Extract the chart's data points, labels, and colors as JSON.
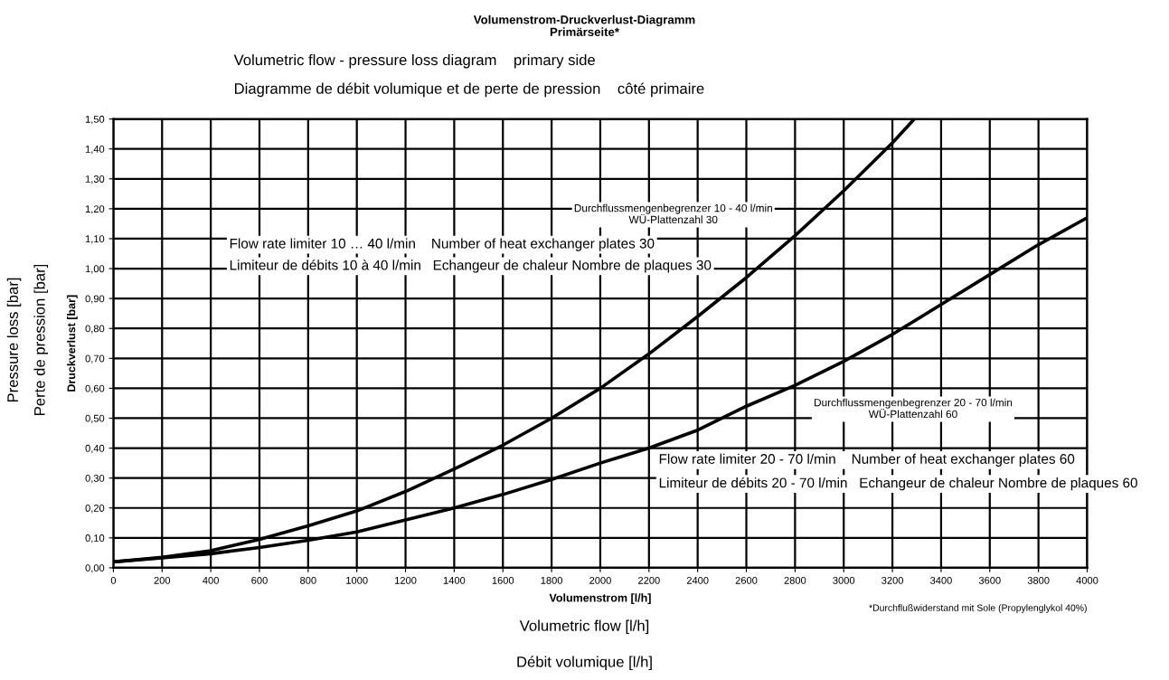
{
  "chart_data": {
    "type": "line",
    "title": "Volumenstrom-Druckverlust-Diagramm",
    "subtitle": "Primärseite*",
    "xlabel": "Volumenstrom [l/h]",
    "ylabel": "Druckverlust [bar]",
    "xlim": [
      0,
      4000
    ],
    "xticks": [
      0,
      200,
      400,
      600,
      800,
      1000,
      1200,
      1400,
      1600,
      1800,
      2000,
      2200,
      2400,
      2600,
      2800,
      3000,
      3200,
      3400,
      3600,
      3800,
      4000
    ],
    "ylim": [
      0,
      1.5
    ],
    "yticks": [
      {
        "value": 0,
        "label": "0,00"
      },
      {
        "value": 0.1,
        "label": "0,10"
      },
      {
        "value": 0.2,
        "label": "0,20"
      },
      {
        "value": 0.3,
        "label": "0,30"
      },
      {
        "value": 0.4,
        "label": "0,40"
      },
      {
        "value": 0.5,
        "label": "0,50"
      },
      {
        "value": 0.6,
        "label": "0,60"
      },
      {
        "value": 0.7,
        "label": "0,70"
      },
      {
        "value": 0.8,
        "label": "0,80"
      },
      {
        "value": 0.9,
        "label": "0,90"
      },
      {
        "value": 1.0,
        "label": "1,00"
      },
      {
        "value": 1.1,
        "label": "1,10"
      },
      {
        "value": 1.2,
        "label": "1,20"
      },
      {
        "value": 1.3,
        "label": "1,30"
      },
      {
        "value": 1.4,
        "label": "1,40"
      },
      {
        "value": 1.5,
        "label": "1,50"
      }
    ],
    "grid": true,
    "legend": false,
    "marker": "none",
    "line_style": "solid",
    "series": [
      {
        "name": "Durchflussmengenbegrenzer 10 - 40 l/min\nWÜ-Plattenzahl 30",
        "color": "#000000",
        "x": [
          0,
          200,
          400,
          600,
          800,
          1000,
          1200,
          1400,
          1600,
          1800,
          2000,
          2200,
          2400,
          2600,
          2800,
          3000,
          3200,
          3290
        ],
        "values": [
          0.02,
          0.035,
          0.057,
          0.095,
          0.14,
          0.19,
          0.255,
          0.33,
          0.41,
          0.5,
          0.6,
          0.715,
          0.84,
          0.97,
          1.11,
          1.26,
          1.42,
          1.5
        ]
      },
      {
        "name": "Durchflussmengenbegrenzer 20 - 70 l/min\nWÜ-Plattenzahl 60",
        "color": "#000000",
        "x": [
          0,
          200,
          400,
          600,
          800,
          1000,
          1200,
          1400,
          1600,
          1800,
          2000,
          2200,
          2400,
          2600,
          2800,
          3000,
          3200,
          3400,
          3600,
          3800,
          4000
        ],
        "values": [
          0.02,
          0.033,
          0.047,
          0.068,
          0.092,
          0.12,
          0.16,
          0.2,
          0.245,
          0.295,
          0.35,
          0.4,
          0.46,
          0.54,
          0.61,
          0.69,
          0.78,
          0.88,
          0.98,
          1.08,
          1.17
        ]
      }
    ],
    "annotations": [
      "Volumetric flow - pressure loss diagram    primary side",
      "Diagramme de débit volumique et de perte de pression    côté primaire",
      "Pressure loss [bar]",
      "Perte de pression [bar]",
      "Volumetric flow [l/h]",
      "Débit volumique [l/h]",
      "*Durchflußwiderstand mit Sole (Propylenglykol 40%)",
      "Flow rate limiter 10 … 40 l/min    Number of heat exchanger plates 30",
      "Limiteur de débits 10 à 40 l/min   Echangeur de chaleur Nombre de plaques 30",
      "Flow rate limiter 20 - 70 l/min    Number of heat exchanger plates 60",
      "Limiteur de débits 20 - 70 l/min   Echangeur de chaleur Nombre de plaques 60"
    ]
  }
}
